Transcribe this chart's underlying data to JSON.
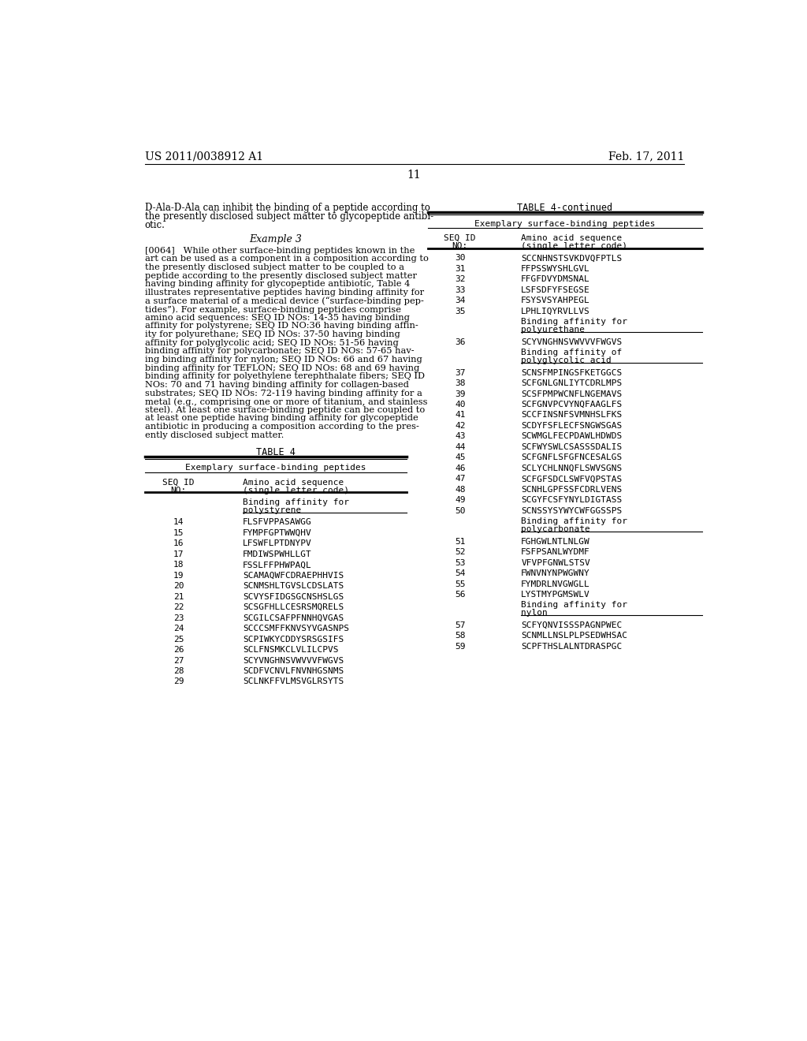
{
  "bg_color": "#ffffff",
  "header_left": "US 2011/0038912 A1",
  "header_right": "Feb. 17, 2011",
  "page_number": "11",
  "body_font": "DejaVu Serif",
  "mono_font": "DejaVu Sans Mono",
  "para1_lines": [
    "D-Ala-D-Ala can inhibit the binding of a peptide according to",
    "the presently disclosed subject matter to glycopeptide antibi-",
    "otic."
  ],
  "example3": "Example 3",
  "para2_lines": [
    "[0064]   While other surface-binding peptides known in the",
    "art can be used as a component in a composition according to",
    "the presently disclosed subject matter to be coupled to a",
    "peptide according to the presently disclosed subject matter",
    "having binding affinity for glycopeptide antibiotic, Table 4",
    "illustrates representative peptides having binding affinity for",
    "a surface material of a medical device (“surface-binding pep-",
    "tides”). For example, surface-binding peptides comprise",
    "amino acid sequences: SEQ ID NOs: 14-35 having binding",
    "affinity for polystyrene; SEQ ID NO:36 having binding affin-",
    "ity for polyurethane; SEQ ID NOs: 37-50 having binding",
    "affinity for polyglycolic acid; SEQ ID NOs: 51-56 having",
    "binding affinity for polycarbonate; SEQ ID NOs: 57-65 hav-",
    "ing binding affinity for nylon; SEQ ID NOs: 66 and 67 having",
    "binding affinity for TEFLON; SEQ ID NOs: 68 and 69 having",
    "binding affinity for polyethylene terephthalate fibers; SEQ ID",
    "NOs: 70 and 71 having binding affinity for collagen-based",
    "substrates; SEQ ID NOs: 72-119 having binding affinity for a",
    "metal (e.g., comprising one or more of titanium, and stainless",
    "steel). At least one surface-binding peptide can be coupled to",
    "at least one peptide having binding affinity for glycopeptide",
    "antibiotic in producing a composition according to the pres-",
    "ently disclosed subject matter."
  ],
  "table4_title": "TABLE 4",
  "table4_subtitle": "Exemplary surface-binding peptides",
  "table4_col1_line1": "SEQ ID",
  "table4_col1_line2": "NO:",
  "table4_col2_line1": "Amino acid sequence",
  "table4_col2_line2": "(single letter code)",
  "table4_section1_line1": "Binding affinity for",
  "table4_section1_line2": "polystyrene",
  "table4_entries_left": [
    [
      "14",
      "FLSFVPPASAWGG"
    ],
    [
      "15",
      "FYMPFGPTWWQHV"
    ],
    [
      "16",
      "LFSWFLPTDNYPV"
    ],
    [
      "17",
      "FMDIWSPWHLLGT"
    ],
    [
      "18",
      "FSSLFFPHWPAQL"
    ],
    [
      "19",
      "SCAMAQWFCDRAEPHHVIS"
    ],
    [
      "20",
      "SCNMSHLTGVSLCDSLATS"
    ],
    [
      "21",
      "SCVYSFIDGSGCNSHSLGS"
    ],
    [
      "22",
      "SCSGFHLLCESRSMQRELS"
    ],
    [
      "23",
      "SCGILCSAFPFNNHQVGAS"
    ],
    [
      "24",
      "SCCCSMFFKNVSYVGASNPS"
    ],
    [
      "25",
      "SCPIWKYCDDYSRSGSIFS"
    ],
    [
      "26",
      "SCLFNSMKCLVLILCPVS"
    ],
    [
      "27",
      "SCYVNGHNSVWVVVFWGVS"
    ],
    [
      "28",
      "SCDFVCNVLFNVNHGSNMS"
    ],
    [
      "29",
      "SCLNKFFVLMSVGLRSYTS"
    ]
  ],
  "table4cont_title": "TABLE 4-continued",
  "table4cont_subtitle": "Exemplary surface-binding peptides",
  "right_entries": [
    {
      "type": "row",
      "num": "30",
      "seq": "SCCNHNSTSVKDVQFPTLS"
    },
    {
      "type": "row",
      "num": "31",
      "seq": "FFPSSWYSHLGVL"
    },
    {
      "type": "row",
      "num": "32",
      "seq": "FFGFDVYDMSNAL"
    },
    {
      "type": "row",
      "num": "33",
      "seq": "LSFSDFYFSEGSE"
    },
    {
      "type": "row",
      "num": "34",
      "seq": "FSYSVSYAHPEGL"
    },
    {
      "type": "row",
      "num": "35",
      "seq": "LPHLIQYRVLLVS"
    },
    {
      "type": "section",
      "line1": "Binding affinity for",
      "line2": "polyurethane"
    },
    {
      "type": "row",
      "num": "36",
      "seq": "SCYVNGHNSVWVVVFWGVS"
    },
    {
      "type": "section",
      "line1": "Binding affinity of",
      "line2": "polyglycolic acid"
    },
    {
      "type": "row",
      "num": "37",
      "seq": "SCNSFMPINGSFKETGGCS"
    },
    {
      "type": "row",
      "num": "38",
      "seq": "SCFGNLGNLIYTCDRLMPS"
    },
    {
      "type": "row",
      "num": "39",
      "seq": "SCSFPMPWCNFLNGEMAVS"
    },
    {
      "type": "row",
      "num": "40",
      "seq": "SCFGNVPCVYNQFAAGLFS"
    },
    {
      "type": "row",
      "num": "41",
      "seq": "SCCFINSNFSVMNHSLFKS"
    },
    {
      "type": "row",
      "num": "42",
      "seq": "SCDYFSFLECFSNGWSGAS"
    },
    {
      "type": "row",
      "num": "43",
      "seq": "SCWMGLFECPDAWLHDWDS"
    },
    {
      "type": "row",
      "num": "44",
      "seq": "SCFWYSWLCSASSSDALIS"
    },
    {
      "type": "row",
      "num": "45",
      "seq": "SCFGNFLSFGFNCESALGS"
    },
    {
      "type": "row",
      "num": "46",
      "seq": "SCLYCHLNNQFLSWVSGNS"
    },
    {
      "type": "row",
      "num": "47",
      "seq": "SCFGFSDCLSWFVQPSTAS"
    },
    {
      "type": "row",
      "num": "48",
      "seq": "SCNHLGPFSSFCDRLVENS"
    },
    {
      "type": "row",
      "num": "49",
      "seq": "SCGYFCSFYNYLDIGTASS"
    },
    {
      "type": "row",
      "num": "50",
      "seq": "SCNSSYSYWYCWFGGSSPS"
    },
    {
      "type": "section",
      "line1": "Binding affinity for",
      "line2": "polycarbonate"
    },
    {
      "type": "row",
      "num": "51",
      "seq": "FGHGWLNTLNLGW"
    },
    {
      "type": "row",
      "num": "52",
      "seq": "FSFPSANLWYDMF"
    },
    {
      "type": "row",
      "num": "53",
      "seq": "VFVPFGNWLSTSV"
    },
    {
      "type": "row",
      "num": "54",
      "seq": "FWNVNYNPWGWNY"
    },
    {
      "type": "row",
      "num": "55",
      "seq": "FYMDRLNVGWGLL"
    },
    {
      "type": "row",
      "num": "56",
      "seq": "LYSTMYPGMSWLV"
    },
    {
      "type": "section",
      "line1": "Binding affinity for",
      "line2": "nylon"
    },
    {
      "type": "row",
      "num": "57",
      "seq": "SCFYQNVISSSPAGNPWEC"
    },
    {
      "type": "row",
      "num": "58",
      "seq": "SCNMLLNSLPLPSEDWHSAC"
    },
    {
      "type": "row",
      "num": "59",
      "seq": "SCPFTHSLALNTDRASPGC"
    }
  ]
}
